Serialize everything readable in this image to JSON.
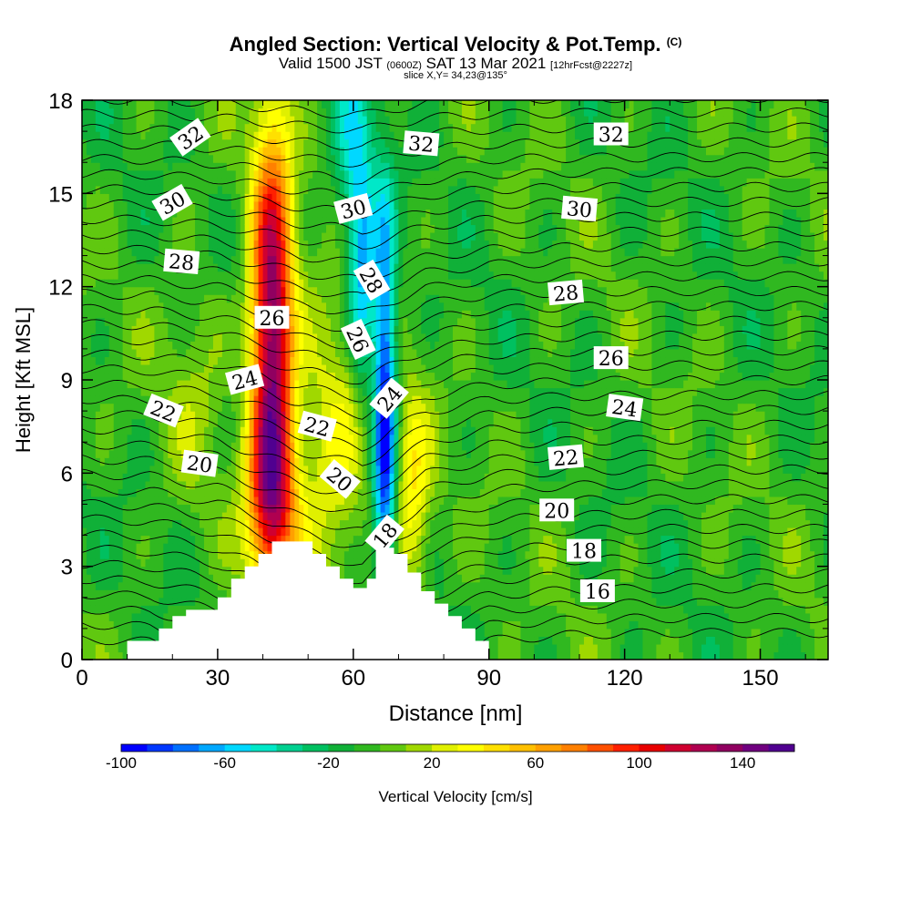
{
  "header": {
    "title": "Angled Section: Vertical Velocity & Pot.Temp.",
    "copyright": "(C)",
    "valid_prefix": "Valid 1500 JST",
    "valid_utc": "(0600Z)",
    "valid_date": "SAT 13 Mar 2021",
    "forecast": "[12hrFcst@2227z]",
    "slice": "slice X,Y= 34,23@135°"
  },
  "chart_data": {
    "type": "heatmap",
    "title": "Angled Section: Vertical Velocity & Pot.Temp.",
    "xlabel": "Distance [nm]",
    "ylabel": "Height [Kft MSL]",
    "xlim": [
      0,
      165
    ],
    "ylim": [
      0,
      18
    ],
    "x_ticks": [
      "0",
      "30",
      "60",
      "90",
      "120",
      "150"
    ],
    "x_tick_values": [
      0,
      30,
      60,
      90,
      120,
      150
    ],
    "y_ticks": [
      "0",
      "3",
      "6",
      "9",
      "12",
      "15",
      "18"
    ],
    "y_tick_values": [
      0,
      3,
      6,
      9,
      12,
      15,
      18
    ],
    "colorbar": {
      "label": "Vertical Velocity [cm/s]",
      "min": -100,
      "max": 160,
      "step": 10,
      "tick_labels": [
        "-100",
        "-60",
        "-20",
        "20",
        "60",
        "100",
        "140"
      ],
      "tick_values": [
        -100,
        -60,
        -20,
        20,
        60,
        100,
        140
      ],
      "colors": [
        "#0000ff",
        "#0038ff",
        "#0070ff",
        "#00a8ff",
        "#00d8ff",
        "#00e8c8",
        "#00d090",
        "#00c060",
        "#10b038",
        "#30b820",
        "#60c810",
        "#a0d800",
        "#e0f000",
        "#ffff00",
        "#ffe000",
        "#ffc000",
        "#ffa000",
        "#ff8000",
        "#ff5000",
        "#ff2000",
        "#e80000",
        "#d00030",
        "#b00050",
        "#900060",
        "#700080",
        "#500090"
      ]
    },
    "terrain": [
      [
        0,
        0
      ],
      [
        10,
        0
      ],
      [
        10,
        0.6
      ],
      [
        17,
        0.6
      ],
      [
        17,
        1.0
      ],
      [
        20,
        1.0
      ],
      [
        20,
        1.4
      ],
      [
        23,
        1.4
      ],
      [
        23,
        1.6
      ],
      [
        30,
        1.6
      ],
      [
        30,
        2.0
      ],
      [
        33,
        2.0
      ],
      [
        33,
        2.6
      ],
      [
        36,
        2.6
      ],
      [
        36,
        3.0
      ],
      [
        39,
        3.0
      ],
      [
        39,
        3.4
      ],
      [
        42,
        3.4
      ],
      [
        42,
        3.8
      ],
      [
        51,
        3.8
      ],
      [
        51,
        3.4
      ],
      [
        54,
        3.4
      ],
      [
        54,
        3.0
      ],
      [
        57,
        3.0
      ],
      [
        57,
        2.6
      ],
      [
        60,
        2.6
      ],
      [
        60,
        2.3
      ],
      [
        63,
        2.3
      ],
      [
        63,
        2.6
      ],
      [
        65,
        2.6
      ],
      [
        65,
        3.6
      ],
      [
        69,
        3.6
      ],
      [
        69,
        3.4
      ],
      [
        72,
        3.4
      ],
      [
        72,
        2.8
      ],
      [
        75,
        2.8
      ],
      [
        75,
        2.2
      ],
      [
        78,
        2.2
      ],
      [
        78,
        1.8
      ],
      [
        81,
        1.8
      ],
      [
        81,
        1.4
      ],
      [
        84,
        1.4
      ],
      [
        84,
        1.0
      ],
      [
        87,
        1.0
      ],
      [
        87,
        0.6
      ],
      [
        90,
        0.6
      ],
      [
        90,
        0
      ],
      [
        165,
        0
      ]
    ],
    "theta_contours": [
      {
        "label": "16",
        "x": 114,
        "y": 2.2,
        "angle": 0
      },
      {
        "label": "18",
        "x": 111,
        "y": 3.5,
        "angle": 0
      },
      {
        "label": "18",
        "x": 67,
        "y": 4.0,
        "angle": -50
      },
      {
        "label": "20",
        "x": 105,
        "y": 4.8,
        "angle": 0
      },
      {
        "label": "20",
        "x": 26,
        "y": 6.3,
        "angle": 8
      },
      {
        "label": "20",
        "x": 57,
        "y": 5.8,
        "angle": 40
      },
      {
        "label": "22",
        "x": 107,
        "y": 6.5,
        "angle": -5
      },
      {
        "label": "22",
        "x": 18,
        "y": 8.0,
        "angle": 22
      },
      {
        "label": "22",
        "x": 52,
        "y": 7.5,
        "angle": 15
      },
      {
        "label": "24",
        "x": 120,
        "y": 8.1,
        "angle": 8
      },
      {
        "label": "24",
        "x": 36,
        "y": 9.0,
        "angle": -15
      },
      {
        "label": "24",
        "x": 68,
        "y": 8.4,
        "angle": -50
      },
      {
        "label": "26",
        "x": 117,
        "y": 9.7,
        "angle": 0
      },
      {
        "label": "26",
        "x": 42,
        "y": 11.0,
        "angle": 0
      },
      {
        "label": "26",
        "x": 61,
        "y": 10.3,
        "angle": 65
      },
      {
        "label": "28",
        "x": 107,
        "y": 11.8,
        "angle": -5
      },
      {
        "label": "28",
        "x": 22,
        "y": 12.8,
        "angle": 5
      },
      {
        "label": "28",
        "x": 64,
        "y": 12.2,
        "angle": 60
      },
      {
        "label": "30",
        "x": 110,
        "y": 14.5,
        "angle": 5
      },
      {
        "label": "30",
        "x": 20,
        "y": 14.7,
        "angle": -30
      },
      {
        "label": "30",
        "x": 60,
        "y": 14.5,
        "angle": -15
      },
      {
        "label": "32",
        "x": 117,
        "y": 16.9,
        "angle": 0
      },
      {
        "label": "32",
        "x": 24,
        "y": 16.8,
        "angle": -35
      },
      {
        "label": "32",
        "x": 75,
        "y": 16.6,
        "angle": 5
      }
    ],
    "theta_profile": [
      [
        0,
        0.3
      ],
      [
        15,
        0.4
      ],
      [
        30,
        0.9
      ],
      [
        40,
        1.6
      ],
      [
        48,
        2.2
      ],
      [
        56,
        2.6
      ],
      [
        62,
        2.9
      ],
      [
        68,
        2.0
      ],
      [
        76,
        1.0
      ],
      [
        90,
        0.35
      ],
      [
        110,
        0.15
      ],
      [
        130,
        0.1
      ],
      [
        165,
        0.1
      ]
    ],
    "theta_levels": {
      "min": 15,
      "max": 33,
      "step": 0.5,
      "base_theta": 14,
      "theta_per_kft": 1.05
    },
    "updrafts": [
      {
        "x": 42,
        "y": 10.5,
        "sx": 3.2,
        "sy": 4.5,
        "peak": 150
      },
      {
        "x": 42,
        "y": 5.0,
        "sx": 4.0,
        "sy": 2.0,
        "peak": 70
      },
      {
        "x": 56,
        "y": 7.0,
        "sx": 6.0,
        "sy": 3.0,
        "peak": 40
      },
      {
        "x": 73,
        "y": 5.0,
        "sx": 3.0,
        "sy": 2.5,
        "peak": 45
      },
      {
        "x": 25,
        "y": 9.0,
        "sx": 5.0,
        "sy": 3.0,
        "peak": 15
      }
    ],
    "downdrafts": [
      {
        "x": 67,
        "y": 8.0,
        "sx": 1.8,
        "sy": 4.5,
        "peak": -100
      },
      {
        "x": 62,
        "y": 12.0,
        "sx": 2.0,
        "sy": 2.5,
        "peak": -55
      },
      {
        "x": 60,
        "y": 16.0,
        "sx": 3.0,
        "sy": 3.0,
        "peak": -35
      }
    ],
    "background_vv": -5
  }
}
